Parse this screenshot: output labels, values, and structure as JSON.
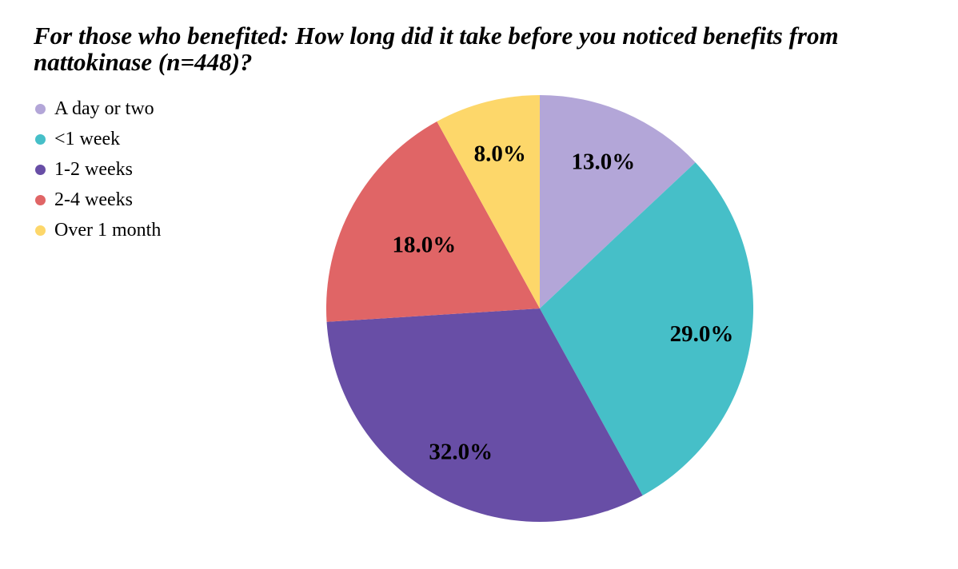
{
  "chart_data": {
    "type": "pie",
    "title": "For those who benefited: How long did it take before you noticed benefits from nattokinase (n=448)?",
    "categories": [
      "A day or two",
      "<1 week",
      "1-2 weeks",
      "2-4 weeks",
      "Over 1 month"
    ],
    "values": [
      13.0,
      29.0,
      32.0,
      18.0,
      8.0
    ],
    "value_labels": [
      "13.0%",
      "29.0%",
      "32.0%",
      "18.0%",
      "8.0%"
    ],
    "colors": [
      "#b3a6d8",
      "#46bfc8",
      "#684ea6",
      "#e06566",
      "#fdd76a"
    ],
    "start_angle": "12 o'clock",
    "direction": "clockwise",
    "legend_position": "top-left"
  }
}
